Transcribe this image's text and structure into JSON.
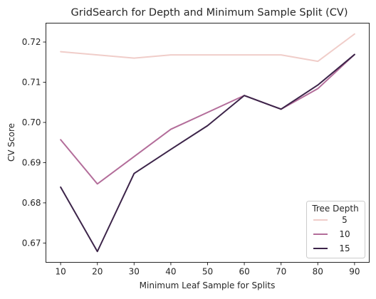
{
  "chart_data": {
    "type": "line",
    "title": "GridSearch for Depth and Minimum Sample Split (CV)",
    "xlabel": "Minimum Leaf Sample for Splits",
    "ylabel": "CV Score",
    "x": [
      10,
      20,
      30,
      40,
      50,
      60,
      70,
      80,
      90
    ],
    "x_ticks": [
      10,
      20,
      30,
      40,
      50,
      60,
      70,
      80,
      90
    ],
    "y_ticks": [
      0.67,
      0.68,
      0.69,
      0.7,
      0.71,
      0.72
    ],
    "y_tick_labels": [
      "0.67",
      "0.68",
      "0.69",
      "0.70",
      "0.71",
      "0.72"
    ],
    "xlim": [
      6,
      94
    ],
    "ylim": [
      0.6652,
      0.7247
    ],
    "grid": false,
    "legend": {
      "title": "Tree Depth",
      "placement": "bottom-right"
    },
    "series": [
      {
        "name": "5",
        "color": "#f0cdc9",
        "values": [
          0.7176,
          0.7168,
          0.716,
          0.7168,
          0.7168,
          0.7168,
          0.7168,
          0.7152,
          0.722
        ]
      },
      {
        "name": "10",
        "color": "#b36d9a",
        "values": [
          0.6957,
          0.6847,
          0.6915,
          0.6983,
          0.7025,
          0.7067,
          0.7033,
          0.7084,
          0.7169
        ]
      },
      {
        "name": "15",
        "color": "#3c2449",
        "values": [
          0.6839,
          0.6679,
          0.6873,
          0.6933,
          0.6992,
          0.7067,
          0.7033,
          0.7093,
          0.7169
        ]
      }
    ]
  }
}
